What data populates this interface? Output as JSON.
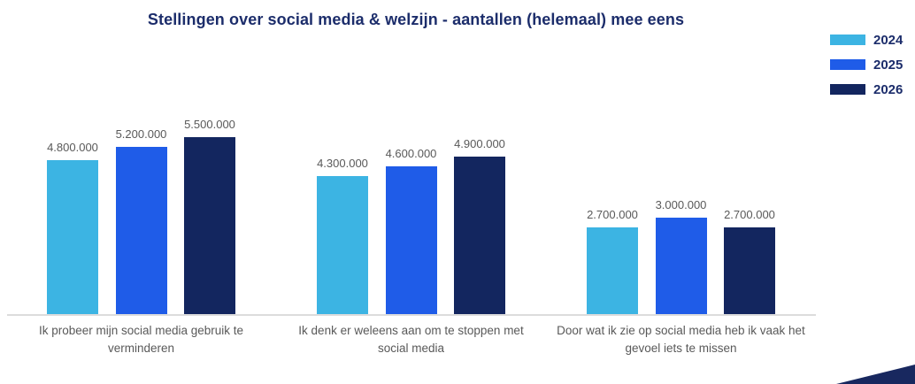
{
  "chart_data": {
    "type": "bar",
    "title": "Stellingen over social media & welzijn - aantallen (helemaal) mee eens",
    "categories": [
      "Ik probeer mijn social media gebruik te verminderen",
      "Ik denk er weleens aan om te stoppen met social media",
      "Door wat ik zie op social media heb ik vaak het gevoel iets te missen"
    ],
    "category_lines": [
      [
        "Ik probeer mijn social media gebruik te",
        "verminderen"
      ],
      [
        "Ik denk er weleens aan om te stoppen met",
        "social media"
      ],
      [
        "Door wat ik zie op social media heb ik vaak het",
        "gevoel iets te missen"
      ]
    ],
    "series": [
      {
        "name": "2024",
        "color": "#3cb4e3",
        "values": [
          4800000,
          4300000,
          2700000
        ],
        "value_labels": [
          "4.800.000",
          "4.300.000",
          "2.700.000"
        ]
      },
      {
        "name": "2025",
        "color": "#1f5ce8",
        "values": [
          5200000,
          4600000,
          3000000
        ],
        "value_labels": [
          "5.200.000",
          "4.600.000",
          "3.000.000"
        ]
      },
      {
        "name": "2026",
        "color": "#13265f",
        "values": [
          5500000,
          4900000,
          2700000
        ],
        "value_labels": [
          "5.500.000",
          "4.900.000",
          "2.700.000"
        ]
      }
    ],
    "ylim": [
      0,
      5800000
    ],
    "grid": false,
    "legend_position": "top-right",
    "title_color": "#1c2d6b",
    "legend_text_color": "#1c2d6b",
    "value_label_color": "#595959",
    "category_label_color": "#595959",
    "axis_line_color": "#dcdcdc",
    "decor_triangle_color": "#18285f"
  }
}
